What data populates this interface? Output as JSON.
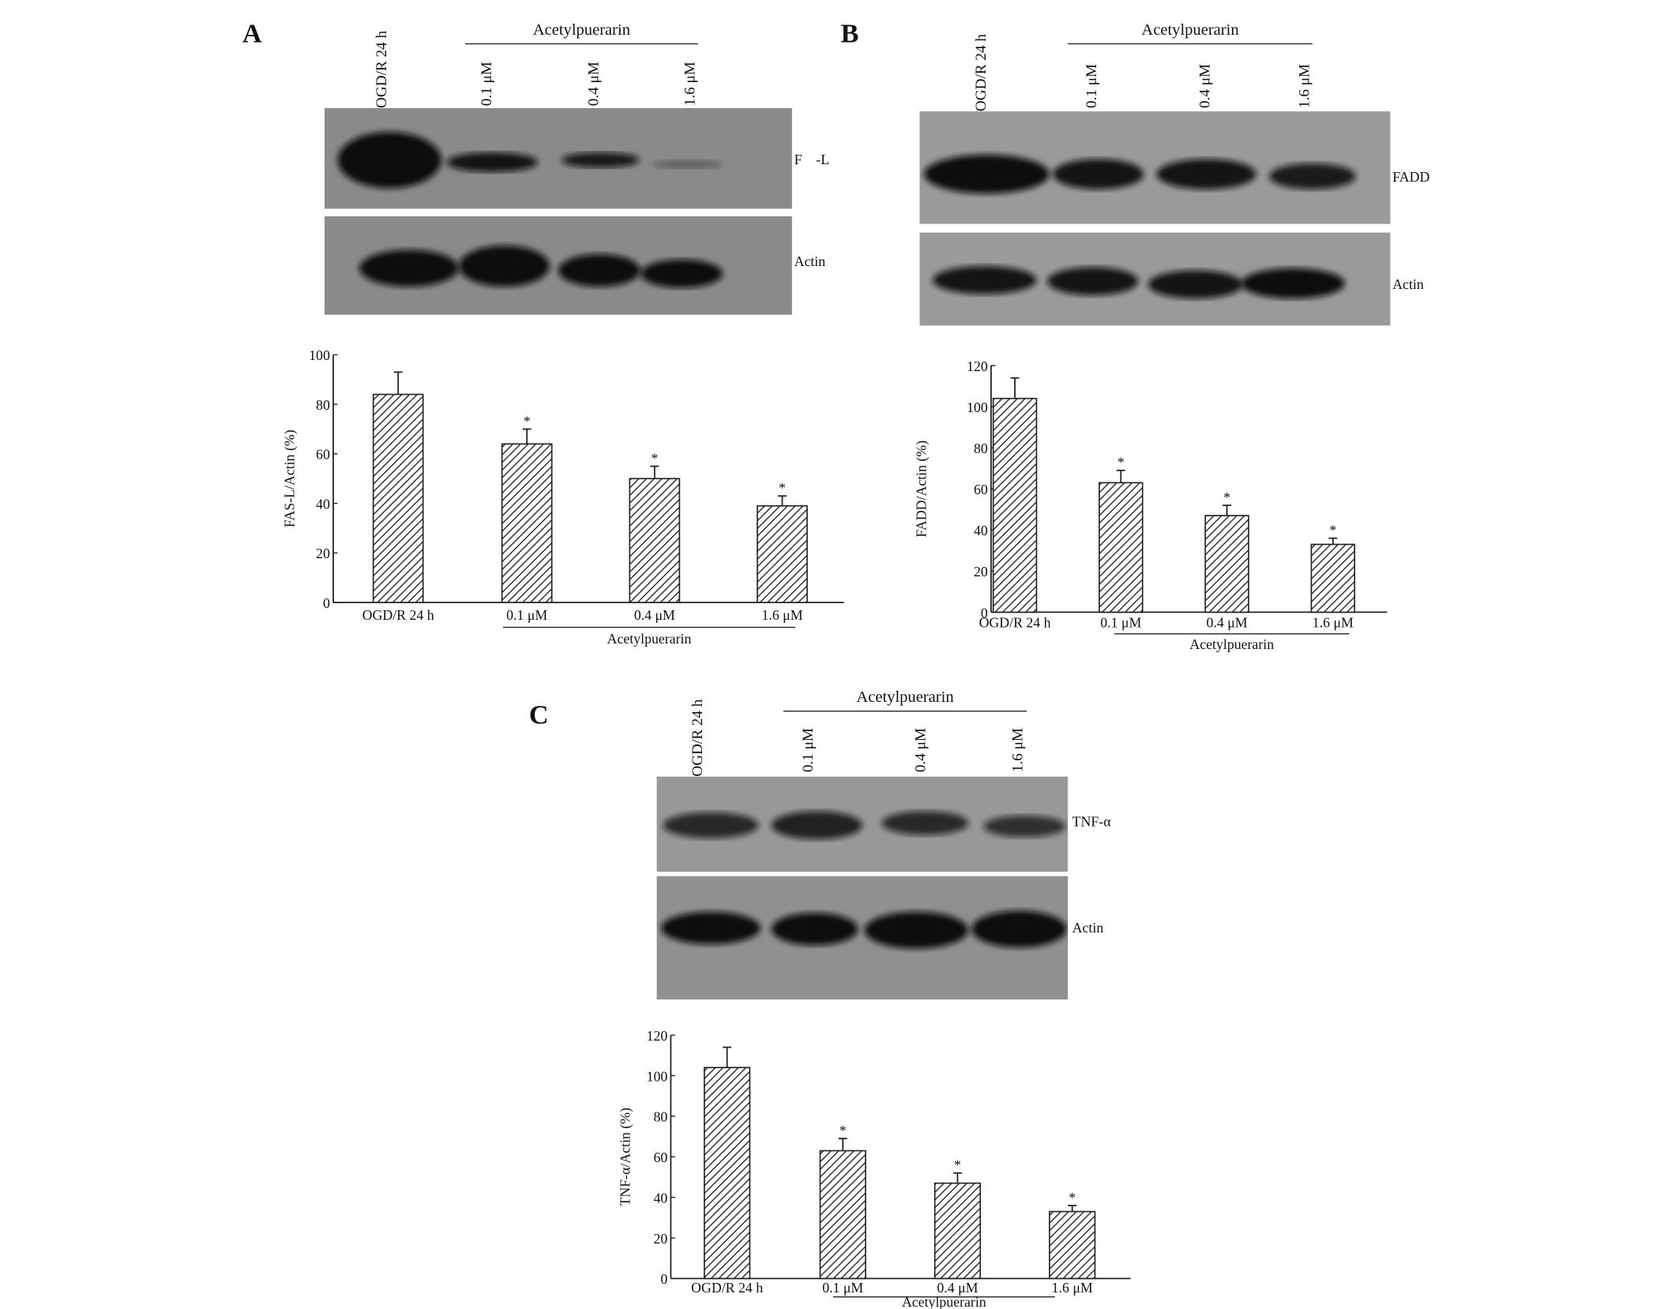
{
  "panels": [
    {
      "letter": "A",
      "group_label": "Acetylpuerarin",
      "lanes": [
        "OGD/R 24 h",
        "0.1 μM",
        "0.4 μM",
        "1.6 μM"
      ],
      "blots": [
        {
          "label": "F    -L"
        },
        {
          "label": "Actin"
        }
      ]
    },
    {
      "letter": "B",
      "group_label": "Acetylpuerarin",
      "lanes": [
        "OGD/R 24 h",
        "0.1 μM",
        "0.4 μM",
        "1.6 μM"
      ],
      "blots": [
        {
          "label": "FADD"
        },
        {
          "label": "Actin"
        }
      ]
    },
    {
      "letter": "C",
      "group_label": "Acetylpuerarin",
      "lanes": [
        "OGD/R 24 h",
        "0.1 μM",
        "0.4 μM",
        "1.6 μM"
      ],
      "blots": [
        {
          "label": "TNF-α"
        },
        {
          "label": "Actin"
        }
      ]
    }
  ],
  "chart_data": [
    {
      "type": "bar",
      "categories": [
        "OGD/R 24 h",
        "0.1 μM",
        "0.4 μM",
        "1.6 μM"
      ],
      "group_label": "Acetylpuerarin",
      "values": [
        84,
        64,
        50,
        39
      ],
      "error_upper": [
        93,
        70,
        55,
        43
      ],
      "significance": [
        "",
        "*",
        "*",
        "*"
      ],
      "xlabel": "",
      "ylabel": "FAS-L/Actin (%)",
      "ylim": [
        0,
        100
      ],
      "yticks": [
        "0",
        "20",
        "40",
        "60",
        "80",
        "100"
      ],
      "fill": "diagonal hatch",
      "grid": false
    },
    {
      "type": "bar",
      "categories": [
        "OGD/R 24 h",
        "0.1 μM",
        "0.4 μM",
        "1.6 μM"
      ],
      "group_label": "Acetylpuerarin",
      "values": [
        104,
        63,
        47,
        33
      ],
      "error_upper": [
        114,
        69,
        52,
        36
      ],
      "significance": [
        "",
        "*",
        "*",
        "*"
      ],
      "xlabel": "",
      "ylabel": "FADD/Actin (%)",
      "ylim": [
        0,
        120
      ],
      "yticks": [
        "0",
        "20",
        "40",
        "60",
        "80",
        "100",
        "120"
      ],
      "fill": "diagonal hatch",
      "grid": false
    },
    {
      "type": "bar",
      "categories": [
        "OGD/R 24 h",
        "0.1 μM",
        "0.4 μM",
        "1.6 μM"
      ],
      "group_label": "Acetylpuerarin",
      "values": [
        104,
        63,
        47,
        33
      ],
      "error_upper": [
        114,
        69,
        52,
        36
      ],
      "significance": [
        "",
        "*",
        "*",
        "*"
      ],
      "xlabel": "",
      "ylabel": "TNF-α/Actin (%)",
      "ylim": [
        0,
        120
      ],
      "yticks": [
        "0",
        "20",
        "40",
        "60",
        "80",
        "100",
        "120"
      ],
      "fill": "diagonal hatch",
      "grid": false
    }
  ]
}
